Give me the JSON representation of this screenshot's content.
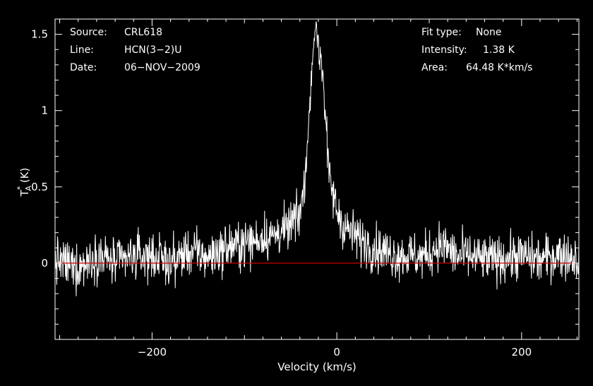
{
  "info_left": [
    {
      "key": "Source:",
      "value": "CRL618"
    },
    {
      "key": "Line:",
      "value": "HCN(3−2)U"
    },
    {
      "key": "Date:",
      "value": "06−NOV−2009"
    }
  ],
  "info_right": [
    {
      "key": "Fit type:",
      "value": "None"
    },
    {
      "key": "Intensity:",
      "value": "1.38 K"
    },
    {
      "key": "Area:",
      "value": "64.48 K*km/s"
    }
  ],
  "chart_data": {
    "type": "line",
    "xlabel": "Velocity (km/s)",
    "ylabel": "T*A (K)",
    "ylabel_parts": {
      "main": "T",
      "sup": "*",
      "sub": "A",
      "unit": "(K)"
    },
    "xlim": [
      -305,
      262
    ],
    "ylim": [
      -0.5,
      1.6
    ],
    "xticks": [
      -200,
      0,
      200
    ],
    "xtick_labels": [
      "−200",
      "0",
      "200"
    ],
    "yticks": [
      0,
      0.5,
      1,
      1.5
    ],
    "ytick_labels": [
      "0",
      "0.5",
      "1",
      "1.5"
    ],
    "grid": false,
    "colors": {
      "background": "#000000",
      "frame": "#ffffff",
      "spectrum": "#ffffff",
      "baseline": "#cc0000"
    },
    "series": [
      {
        "x": [
          -305,
          -280,
          -260,
          -240,
          -220,
          -200,
          -180,
          -160,
          -140,
          -120,
          -100,
          -90,
          -80,
          -70,
          -60,
          -55,
          -50,
          -45,
          -42,
          -40,
          -37,
          -35,
          -32,
          -30,
          -28,
          -26,
          -25,
          -24,
          -23,
          -22,
          -21,
          -20,
          -19,
          -18,
          -17,
          -16,
          -15,
          -14,
          -13,
          -12,
          -11,
          -10,
          -9,
          -8,
          -6,
          -4,
          -2,
          0,
          2,
          5,
          8,
          12,
          16,
          20,
          25,
          30,
          40,
          50,
          60,
          70,
          80,
          90,
          100,
          110,
          120,
          130,
          140,
          160,
          180,
          200,
          220,
          240,
          262
        ],
        "values": [
          0.02,
          -0.03,
          0.06,
          0.0,
          0.04,
          0.05,
          0.0,
          0.08,
          0.04,
          0.1,
          0.13,
          0.14,
          0.18,
          0.17,
          0.22,
          0.2,
          0.26,
          0.28,
          0.3,
          0.34,
          0.42,
          0.55,
          0.75,
          0.95,
          1.2,
          1.38,
          1.45,
          1.52,
          1.48,
          1.58,
          1.44,
          1.52,
          1.3,
          1.35,
          1.4,
          1.22,
          1.3,
          1.1,
          1.0,
          0.95,
          0.82,
          0.72,
          0.62,
          0.55,
          0.5,
          0.44,
          0.4,
          0.35,
          0.32,
          0.28,
          0.24,
          0.22,
          0.2,
          0.18,
          0.15,
          0.14,
          0.1,
          0.08,
          0.06,
          0.05,
          0.05,
          0.04,
          0.06,
          0.12,
          0.1,
          0.04,
          0.05,
          0.02,
          0.03,
          0.05,
          0.02,
          0.06,
          0.03
        ]
      }
    ],
    "baseline_y": 0
  }
}
